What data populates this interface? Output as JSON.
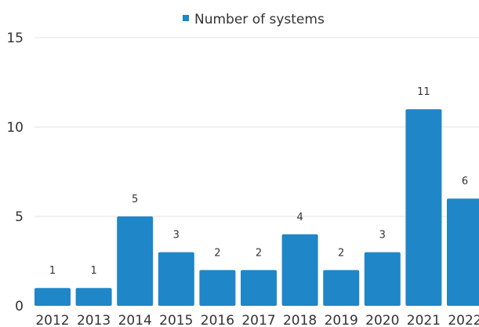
{
  "chart_data": {
    "type": "bar",
    "categories": [
      "2012",
      "2013",
      "2014",
      "2015",
      "2016",
      "2017",
      "2018",
      "2019",
      "2020",
      "2021",
      "2022"
    ],
    "series": [
      {
        "name": "Number of systems",
        "values": [
          1,
          1,
          5,
          3,
          2,
          2,
          4,
          2,
          3,
          11,
          6
        ]
      }
    ],
    "data_labels": [
      "1",
      "1",
      "5",
      "3",
      "2",
      "2",
      "4",
      "2",
      "3",
      "11",
      "6"
    ],
    "ylim": [
      0,
      15
    ],
    "y_ticks": [
      "0",
      "5",
      "10",
      "15"
    ],
    "grid": true,
    "legend_position": "top-center",
    "colors": {
      "bar": "#1f86c8",
      "grid": "#e2e2e2",
      "text": "#333333"
    }
  }
}
